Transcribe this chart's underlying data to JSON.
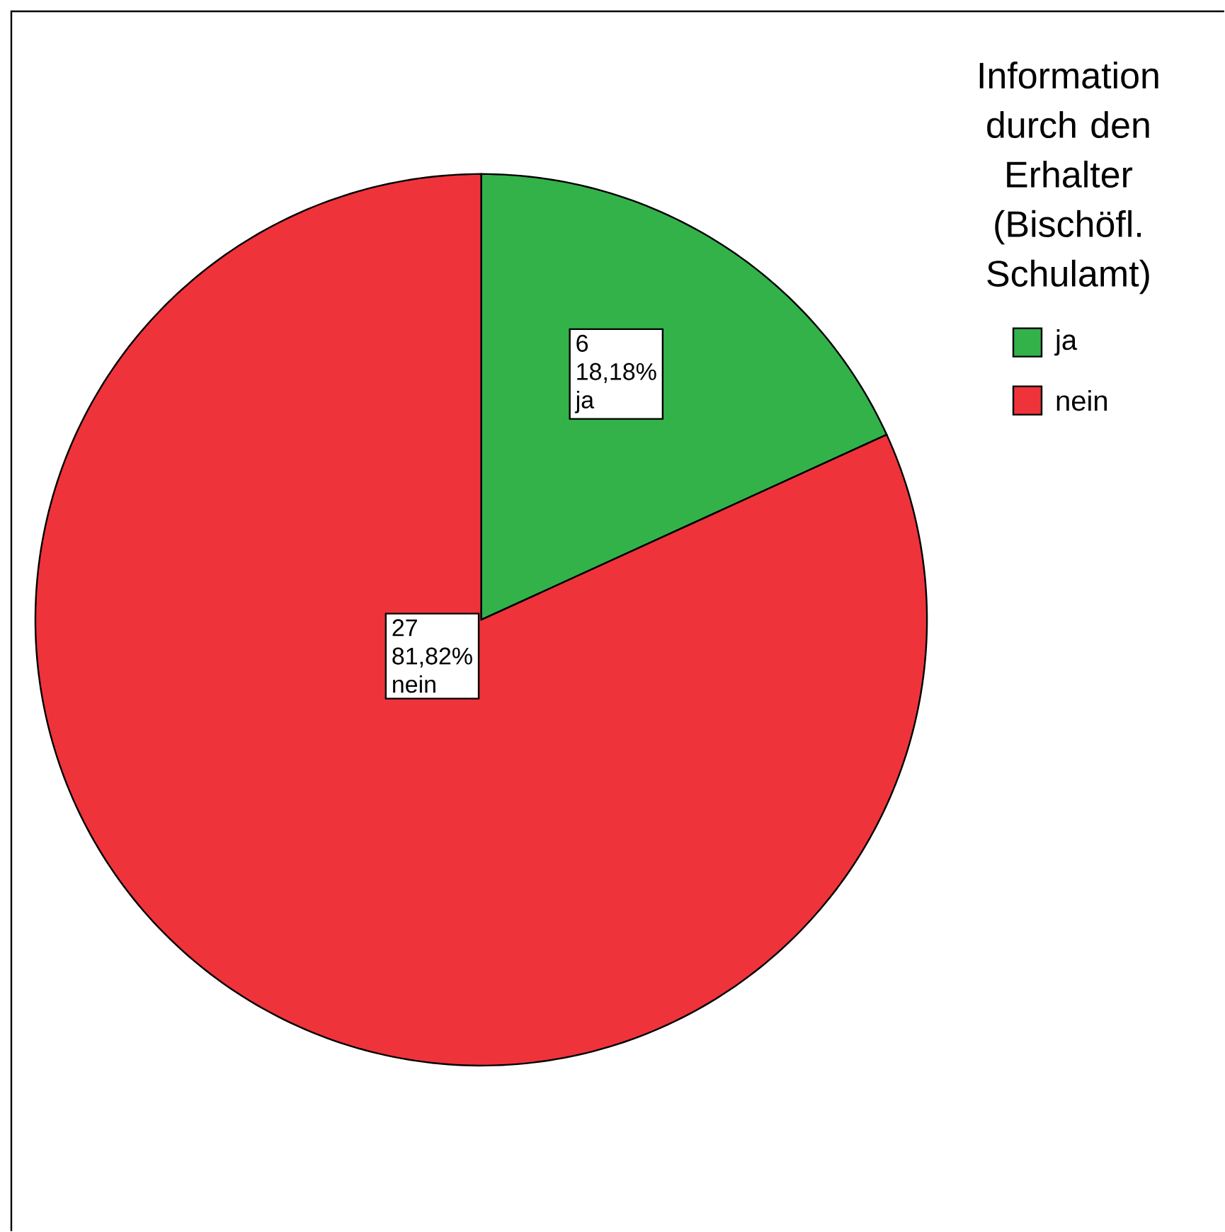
{
  "chart_data": {
    "type": "pie",
    "legend_title": "Information durch den Erhalter (Bischöfl. Schulamt)",
    "categories": [
      "ja",
      "nein"
    ],
    "values": [
      6,
      27
    ],
    "colors": [
      "#33b24a",
      "#ef333b"
    ],
    "value_labels": [
      "6",
      "27"
    ],
    "annotations": [
      "18,18%",
      "81,82%"
    ],
    "legend": "top right"
  }
}
